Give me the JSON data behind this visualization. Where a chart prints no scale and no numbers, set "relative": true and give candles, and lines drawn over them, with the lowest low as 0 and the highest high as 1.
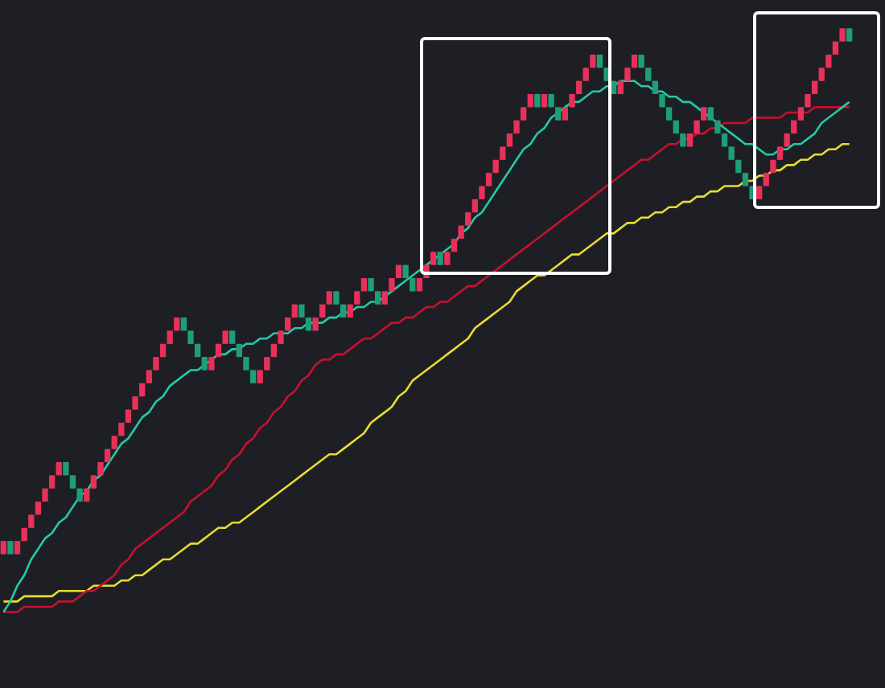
{
  "chart_data": {
    "type": "candlestick",
    "relative": true,
    "categories": [
      null,
      null,
      null,
      null,
      null,
      null,
      null,
      null,
      null,
      null,
      null,
      null,
      null,
      null,
      null,
      null,
      null,
      null,
      null,
      null,
      null,
      null,
      null,
      null,
      null,
      null,
      null,
      null,
      null,
      null,
      null,
      null,
      null,
      null,
      null,
      null,
      null,
      null,
      null,
      null,
      null,
      null,
      null,
      null,
      null,
      null,
      null,
      null,
      null,
      null,
      null,
      null,
      null,
      null,
      null,
      null,
      null,
      null,
      null,
      null,
      null,
      null,
      null,
      null,
      null,
      null,
      null,
      null,
      null,
      null,
      null,
      null,
      null,
      null,
      null,
      null,
      null,
      null,
      null,
      null,
      null,
      null,
      null,
      null,
      null,
      null,
      null,
      null,
      null,
      null,
      null,
      null,
      null,
      null,
      null,
      null,
      null,
      null,
      null,
      null,
      null,
      null,
      null,
      null,
      null,
      null,
      null,
      null,
      null,
      null,
      null,
      null,
      null,
      null,
      null,
      null,
      null,
      null,
      null,
      null,
      null,
      null,
      null
    ],
    "ohlc": [
      [
        0,
        0.025,
        0,
        0.025
      ],
      [
        0.025,
        0.025,
        0,
        0
      ],
      [
        0,
        0.025,
        0,
        0.025
      ],
      [
        0.025,
        0.05,
        0.025,
        0.05
      ],
      [
        0.05,
        0.075,
        0.05,
        0.075
      ],
      [
        0.075,
        0.1,
        0.075,
        0.1
      ],
      [
        0.1,
        0.125,
        0.1,
        0.125
      ],
      [
        0.125,
        0.15,
        0.125,
        0.15
      ],
      [
        0.15,
        0.175,
        0.15,
        0.175
      ],
      [
        0.175,
        0.175,
        0.15,
        0.15
      ],
      [
        0.15,
        0.15,
        0.125,
        0.125
      ],
      [
        0.125,
        0.125,
        0.1,
        0.1
      ],
      [
        0.1,
        0.125,
        0.1,
        0.125
      ],
      [
        0.125,
        0.15,
        0.125,
        0.15
      ],
      [
        0.15,
        0.175,
        0.15,
        0.175
      ],
      [
        0.175,
        0.2,
        0.175,
        0.2
      ],
      [
        0.2,
        0.225,
        0.2,
        0.225
      ],
      [
        0.225,
        0.25,
        0.225,
        0.25
      ],
      [
        0.25,
        0.275,
        0.25,
        0.275
      ],
      [
        0.275,
        0.3,
        0.275,
        0.3
      ],
      [
        0.3,
        0.325,
        0.3,
        0.325
      ],
      [
        0.325,
        0.35,
        0.325,
        0.35
      ],
      [
        0.35,
        0.375,
        0.35,
        0.375
      ],
      [
        0.375,
        0.4,
        0.375,
        0.4
      ],
      [
        0.4,
        0.425,
        0.4,
        0.425
      ],
      [
        0.425,
        0.45,
        0.425,
        0.45
      ],
      [
        0.45,
        0.45,
        0.425,
        0.425
      ],
      [
        0.425,
        0.425,
        0.4,
        0.4
      ],
      [
        0.4,
        0.4,
        0.375,
        0.375
      ],
      [
        0.375,
        0.375,
        0.35,
        0.35
      ],
      [
        0.35,
        0.375,
        0.35,
        0.375
      ],
      [
        0.375,
        0.4,
        0.375,
        0.4
      ],
      [
        0.4,
        0.425,
        0.4,
        0.425
      ],
      [
        0.425,
        0.425,
        0.4,
        0.4
      ],
      [
        0.4,
        0.4,
        0.375,
        0.375
      ],
      [
        0.375,
        0.375,
        0.35,
        0.35
      ],
      [
        0.35,
        0.35,
        0.325,
        0.325
      ],
      [
        0.325,
        0.35,
        0.325,
        0.35
      ],
      [
        0.35,
        0.375,
        0.35,
        0.375
      ],
      [
        0.375,
        0.4,
        0.375,
        0.4
      ],
      [
        0.4,
        0.425,
        0.4,
        0.425
      ],
      [
        0.425,
        0.45,
        0.425,
        0.45
      ],
      [
        0.45,
        0.475,
        0.45,
        0.475
      ],
      [
        0.475,
        0.475,
        0.45,
        0.45
      ],
      [
        0.45,
        0.45,
        0.425,
        0.425
      ],
      [
        0.425,
        0.45,
        0.425,
        0.45
      ],
      [
        0.45,
        0.475,
        0.45,
        0.475
      ],
      [
        0.475,
        0.5,
        0.475,
        0.5
      ],
      [
        0.5,
        0.5,
        0.475,
        0.475
      ],
      [
        0.475,
        0.475,
        0.45,
        0.45
      ],
      [
        0.45,
        0.475,
        0.45,
        0.475
      ],
      [
        0.475,
        0.5,
        0.475,
        0.5
      ],
      [
        0.5,
        0.525,
        0.5,
        0.525
      ],
      [
        0.525,
        0.525,
        0.5,
        0.5
      ],
      [
        0.5,
        0.5,
        0.475,
        0.475
      ],
      [
        0.475,
        0.5,
        0.475,
        0.5
      ],
      [
        0.5,
        0.525,
        0.5,
        0.525
      ],
      [
        0.525,
        0.55,
        0.525,
        0.55
      ],
      [
        0.55,
        0.55,
        0.525,
        0.525
      ],
      [
        0.525,
        0.525,
        0.5,
        0.5
      ],
      [
        0.5,
        0.525,
        0.5,
        0.525
      ],
      [
        0.525,
        0.55,
        0.525,
        0.55
      ],
      [
        0.55,
        0.575,
        0.55,
        0.575
      ],
      [
        0.575,
        0.575,
        0.55,
        0.55
      ],
      [
        0.55,
        0.575,
        0.55,
        0.575
      ],
      [
        0.575,
        0.6,
        0.575,
        0.6
      ],
      [
        0.6,
        0.625,
        0.6,
        0.625
      ],
      [
        0.625,
        0.65,
        0.625,
        0.65
      ],
      [
        0.65,
        0.675,
        0.65,
        0.675
      ],
      [
        0.675,
        0.7,
        0.675,
        0.7
      ],
      [
        0.7,
        0.725,
        0.7,
        0.725
      ],
      [
        0.725,
        0.75,
        0.725,
        0.75
      ],
      [
        0.75,
        0.775,
        0.75,
        0.775
      ],
      [
        0.775,
        0.8,
        0.775,
        0.8
      ],
      [
        0.8,
        0.825,
        0.8,
        0.825
      ],
      [
        0.825,
        0.85,
        0.825,
        0.85
      ],
      [
        0.85,
        0.875,
        0.85,
        0.875
      ],
      [
        0.875,
        0.875,
        0.85,
        0.85
      ],
      [
        0.85,
        0.875,
        0.85,
        0.875
      ],
      [
        0.875,
        0.875,
        0.85,
        0.85
      ],
      [
        0.85,
        0.85,
        0.825,
        0.825
      ],
      [
        0.825,
        0.85,
        0.825,
        0.85
      ],
      [
        0.85,
        0.875,
        0.85,
        0.875
      ],
      [
        0.875,
        0.9,
        0.875,
        0.9
      ],
      [
        0.9,
        0.925,
        0.9,
        0.925
      ],
      [
        0.925,
        0.95,
        0.925,
        0.95
      ],
      [
        0.95,
        0.95,
        0.925,
        0.925
      ],
      [
        0.925,
        0.925,
        0.9,
        0.9
      ],
      [
        0.9,
        0.9,
        0.875,
        0.875
      ],
      [
        0.875,
        0.9,
        0.875,
        0.9
      ],
      [
        0.9,
        0.925,
        0.9,
        0.925
      ],
      [
        0.925,
        0.95,
        0.925,
        0.95
      ],
      [
        0.95,
        0.95,
        0.925,
        0.925
      ],
      [
        0.925,
        0.925,
        0.9,
        0.9
      ],
      [
        0.9,
        0.9,
        0.875,
        0.875
      ],
      [
        0.875,
        0.875,
        0.85,
        0.85
      ],
      [
        0.85,
        0.85,
        0.825,
        0.825
      ],
      [
        0.825,
        0.825,
        0.8,
        0.8
      ],
      [
        0.8,
        0.8,
        0.775,
        0.775
      ],
      [
        0.775,
        0.8,
        0.775,
        0.8
      ],
      [
        0.8,
        0.825,
        0.8,
        0.825
      ],
      [
        0.825,
        0.85,
        0.825,
        0.85
      ],
      [
        0.85,
        0.85,
        0.825,
        0.825
      ],
      [
        0.825,
        0.825,
        0.8,
        0.8
      ],
      [
        0.8,
        0.8,
        0.775,
        0.775
      ],
      [
        0.775,
        0.775,
        0.75,
        0.75
      ],
      [
        0.75,
        0.75,
        0.725,
        0.725
      ],
      [
        0.725,
        0.725,
        0.7,
        0.7
      ],
      [
        0.7,
        0.7,
        0.675,
        0.675
      ],
      [
        0.675,
        0.7,
        0.675,
        0.7
      ],
      [
        0.7,
        0.725,
        0.7,
        0.725
      ],
      [
        0.725,
        0.75,
        0.725,
        0.75
      ],
      [
        0.75,
        0.775,
        0.75,
        0.775
      ],
      [
        0.775,
        0.8,
        0.775,
        0.8
      ],
      [
        0.8,
        0.825,
        0.8,
        0.825
      ],
      [
        0.825,
        0.85,
        0.825,
        0.85
      ],
      [
        0.85,
        0.875,
        0.85,
        0.875
      ],
      [
        0.875,
        0.9,
        0.875,
        0.9
      ],
      [
        0.9,
        0.925,
        0.9,
        0.925
      ],
      [
        0.925,
        0.95,
        0.925,
        0.95
      ],
      [
        0.95,
        0.975,
        0.95,
        0.975
      ],
      [
        0.975,
        1,
        0.975,
        1
      ],
      [
        1,
        1,
        0.975,
        0.975
      ]
    ],
    "colors": [
      "#e8315a",
      "#1e9e79",
      "#e8315a",
      "#e8315a",
      "#e8315a",
      "#e8315a",
      "#e8315a",
      "#e8315a",
      "#e8315a",
      "#1e9e79",
      "#1e9e79",
      "#1e9e79",
      "#e8315a",
      "#e8315a",
      "#e8315a",
      "#e8315a",
      "#e8315a",
      "#e8315a",
      "#e8315a",
      "#e8315a",
      "#e8315a",
      "#e8315a",
      "#e8315a",
      "#e8315a",
      "#e8315a",
      "#e8315a",
      "#1e9e79",
      "#1e9e79",
      "#1e9e79",
      "#1e9e79",
      "#e8315a",
      "#e8315a",
      "#e8315a",
      "#1e9e79",
      "#1e9e79",
      "#1e9e79",
      "#1e9e79",
      "#e8315a",
      "#e8315a",
      "#e8315a",
      "#e8315a",
      "#e8315a",
      "#e8315a",
      "#1e9e79",
      "#1e9e79",
      "#e8315a",
      "#e8315a",
      "#e8315a",
      "#1e9e79",
      "#1e9e79",
      "#e8315a",
      "#e8315a",
      "#e8315a",
      "#1e9e79",
      "#1e9e79",
      "#e8315a",
      "#e8315a",
      "#e8315a",
      "#1e9e79",
      "#1e9e79",
      "#e8315a",
      "#e8315a",
      "#e8315a",
      "#1e9e79",
      "#e8315a",
      "#e8315a",
      "#e8315a",
      "#e8315a",
      "#e8315a",
      "#e8315a",
      "#e8315a",
      "#e8315a",
      "#e8315a",
      "#e8315a",
      "#e8315a",
      "#e8315a",
      "#e8315a",
      "#1e9e79",
      "#e8315a",
      "#1e9e79",
      "#1e9e79",
      "#e8315a",
      "#e8315a",
      "#e8315a",
      "#e8315a",
      "#e8315a",
      "#1e9e79",
      "#1e9e79",
      "#1e9e79",
      "#e8315a",
      "#e8315a",
      "#e8315a",
      "#1e9e79",
      "#1e9e79",
      "#1e9e79",
      "#1e9e79",
      "#1e9e79",
      "#1e9e79",
      "#1e9e79",
      "#e8315a",
      "#e8315a",
      "#e8315a",
      "#1e9e79",
      "#1e9e79",
      "#1e9e79",
      "#1e9e79",
      "#1e9e79",
      "#1e9e79",
      "#1e9e79",
      "#e8315a",
      "#e8315a",
      "#e8315a",
      "#e8315a",
      "#e8315a",
      "#e8315a",
      "#e8315a",
      "#e8315a",
      "#e8315a",
      "#e8315a",
      "#e8315a",
      "#e8315a",
      "#e8315a",
      "#1e9e79"
    ],
    "series": [
      {
        "type": "line",
        "color": "#26c9a8",
        "values": [
          -0.11,
          -0.09,
          -0.06,
          -0.04,
          -0.01,
          0.01,
          0.03,
          0.04,
          0.06,
          0.07,
          0.09,
          0.11,
          0.12,
          0.14,
          0.15,
          0.17,
          0.19,
          0.21,
          0.22,
          0.24,
          0.26,
          0.27,
          0.29,
          0.3,
          0.32,
          0.33,
          0.34,
          0.35,
          0.35,
          0.36,
          0.37,
          0.38,
          0.38,
          0.39,
          0.39,
          0.4,
          0.4,
          0.41,
          0.41,
          0.42,
          0.42,
          0.42,
          0.43,
          0.43,
          0.44,
          0.44,
          0.44,
          0.45,
          0.45,
          0.46,
          0.46,
          0.47,
          0.47,
          0.48,
          0.48,
          0.49,
          0.5,
          0.51,
          0.52,
          0.53,
          0.54,
          0.55,
          0.56,
          0.57,
          0.58,
          0.59,
          0.61,
          0.62,
          0.64,
          0.65,
          0.67,
          0.69,
          0.71,
          0.73,
          0.75,
          0.77,
          0.78,
          0.8,
          0.81,
          0.83,
          0.84,
          0.85,
          0.86,
          0.86,
          0.87,
          0.88,
          0.88,
          0.89,
          0.89,
          0.9,
          0.9,
          0.9,
          0.89,
          0.89,
          0.88,
          0.88,
          0.87,
          0.87,
          0.86,
          0.86,
          0.85,
          0.84,
          0.83,
          0.82,
          0.81,
          0.8,
          0.79,
          0.78,
          0.78,
          0.77,
          0.76,
          0.76,
          0.77,
          0.77,
          0.78,
          0.78,
          0.79,
          0.8,
          0.82,
          0.83,
          0.84,
          0.85,
          0.86
        ]
      },
      {
        "type": "line",
        "color": "#c8102e",
        "values": [
          -0.11,
          -0.11,
          -0.11,
          -0.1,
          -0.1,
          -0.1,
          -0.1,
          -0.1,
          -0.09,
          -0.09,
          -0.09,
          -0.08,
          -0.07,
          -0.07,
          -0.06,
          -0.05,
          -0.04,
          -0.02,
          -0.01,
          0.01,
          0.02,
          0.03,
          0.04,
          0.05,
          0.06,
          0.07,
          0.08,
          0.1,
          0.11,
          0.12,
          0.13,
          0.15,
          0.16,
          0.18,
          0.19,
          0.21,
          0.22,
          0.24,
          0.25,
          0.27,
          0.28,
          0.3,
          0.31,
          0.33,
          0.34,
          0.36,
          0.37,
          0.37,
          0.38,
          0.38,
          0.39,
          0.4,
          0.41,
          0.41,
          0.42,
          0.43,
          0.44,
          0.44,
          0.45,
          0.45,
          0.46,
          0.47,
          0.47,
          0.48,
          0.48,
          0.49,
          0.5,
          0.51,
          0.51,
          0.52,
          0.53,
          0.54,
          0.55,
          0.56,
          0.57,
          0.58,
          0.59,
          0.6,
          0.61,
          0.62,
          0.63,
          0.64,
          0.65,
          0.66,
          0.67,
          0.68,
          0.69,
          0.7,
          0.71,
          0.72,
          0.73,
          0.74,
          0.75,
          0.75,
          0.76,
          0.77,
          0.78,
          0.78,
          0.79,
          0.79,
          0.8,
          0.8,
          0.81,
          0.81,
          0.82,
          0.82,
          0.82,
          0.82,
          0.83,
          0.83,
          0.83,
          0.83,
          0.83,
          0.84,
          0.84,
          0.84,
          0.84,
          0.85,
          0.85,
          0.85,
          0.85,
          0.85,
          0.85
        ]
      },
      {
        "type": "line",
        "color": "#e6dc32",
        "values": [
          -0.09,
          -0.09,
          -0.09,
          -0.08,
          -0.08,
          -0.08,
          -0.08,
          -0.08,
          -0.07,
          -0.07,
          -0.07,
          -0.07,
          -0.07,
          -0.06,
          -0.06,
          -0.06,
          -0.06,
          -0.05,
          -0.05,
          -0.04,
          -0.04,
          -0.03,
          -0.02,
          -0.01,
          -0.01,
          0.0,
          0.01,
          0.02,
          0.02,
          0.03,
          0.04,
          0.05,
          0.05,
          0.06,
          0.06,
          0.07,
          0.08,
          0.09,
          0.1,
          0.11,
          0.12,
          0.13,
          0.14,
          0.15,
          0.16,
          0.17,
          0.18,
          0.19,
          0.19,
          0.2,
          0.21,
          0.22,
          0.23,
          0.25,
          0.26,
          0.27,
          0.28,
          0.3,
          0.31,
          0.33,
          0.34,
          0.35,
          0.36,
          0.37,
          0.38,
          0.39,
          0.4,
          0.41,
          0.43,
          0.44,
          0.45,
          0.46,
          0.47,
          0.48,
          0.5,
          0.51,
          0.52,
          0.53,
          0.53,
          0.54,
          0.55,
          0.56,
          0.57,
          0.57,
          0.58,
          0.59,
          0.6,
          0.61,
          0.61,
          0.62,
          0.63,
          0.63,
          0.64,
          0.64,
          0.65,
          0.65,
          0.66,
          0.66,
          0.67,
          0.67,
          0.68,
          0.68,
          0.69,
          0.69,
          0.7,
          0.7,
          0.7,
          0.71,
          0.71,
          0.72,
          0.72,
          0.73,
          0.73,
          0.74,
          0.74,
          0.75,
          0.75,
          0.76,
          0.76,
          0.77,
          0.77,
          0.78,
          0.78
        ]
      }
    ]
  }
}
